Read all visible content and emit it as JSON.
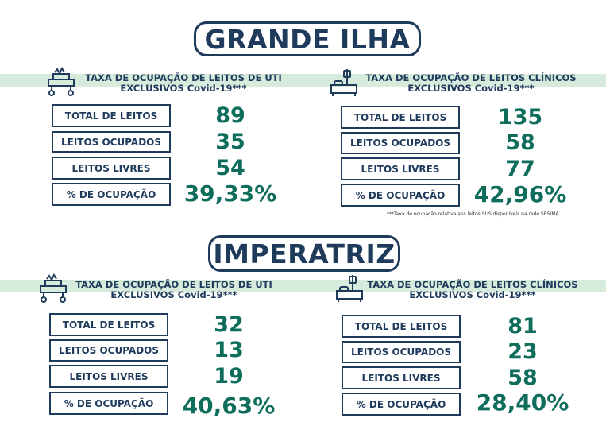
{
  "footnote": "***Taxa de ocupação relativa aos leitos SUS disponíveis na rede SES/MA",
  "regions": [
    {
      "title": "GRANDE ILHA",
      "uti": {
        "header_line1": "TAXA DE OCUPAÇÃO DE LEITOS DE UTI",
        "header_line2": "EXCLUSIVOS Covid-19***",
        "icon": "icu-bed-icon",
        "rows": [
          {
            "label": "TOTAL DE LEITOS",
            "value": "89"
          },
          {
            "label": "LEITOS OCUPADOS",
            "value": "35"
          },
          {
            "label": "LEITOS LIVRES",
            "value": "54"
          },
          {
            "label": "% DE OCUPAÇÃO",
            "value": "39,33%"
          }
        ]
      },
      "clinicos": {
        "header_line1": "TAXA DE OCUPAÇÃO DE LEITOS CLÍNICOS",
        "header_line2": "EXCLUSIVOS Covid-19***",
        "icon": "hospital-bed-icon",
        "rows": [
          {
            "label": "TOTAL DE LEITOS",
            "value": "135"
          },
          {
            "label": "LEITOS OCUPADOS",
            "value": "58"
          },
          {
            "label": "LEITOS LIVRES",
            "value": "77"
          },
          {
            "label": "% DE OCUPAÇÃO",
            "value": "42,96%"
          }
        ]
      }
    },
    {
      "title": "IMPERATRIZ",
      "uti": {
        "header_line1": "TAXA DE OCUPAÇÃO DE LEITOS DE UTI",
        "header_line2": "EXCLUSIVOS Covid-19***",
        "icon": "icu-bed-icon",
        "rows": [
          {
            "label": "TOTAL DE LEITOS",
            "value": "32"
          },
          {
            "label": "LEITOS OCUPADOS",
            "value": "13"
          },
          {
            "label": "LEITOS LIVRES",
            "value": "19"
          },
          {
            "label": "% DE OCUPAÇÃO",
            "value": "40,63%"
          }
        ]
      },
      "clinicos": {
        "header_line1": "TAXA DE OCUPAÇÃO DE LEITOS CLÍNICOS",
        "header_line2": "EXCLUSIVOS Covid-19***",
        "icon": "hospital-bed-icon",
        "rows": [
          {
            "label": "TOTAL DE LEITOS",
            "value": "81"
          },
          {
            "label": "LEITOS OCUPADOS",
            "value": "23"
          },
          {
            "label": "LEITOS LIVRES",
            "value": "58"
          },
          {
            "label": "% DE OCUPAÇÃO",
            "value": "28,40%"
          }
        ]
      }
    }
  ]
}
